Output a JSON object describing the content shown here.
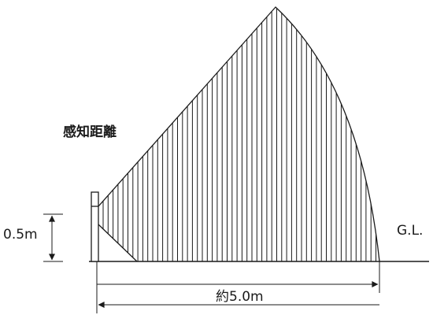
{
  "labels": {
    "detection_range": "感知距離",
    "height": "0.5m",
    "ground_level": "G.L.",
    "distance": "約5.0m"
  },
  "colors": {
    "line": "#1a1a1a",
    "background": "#ffffff"
  }
}
